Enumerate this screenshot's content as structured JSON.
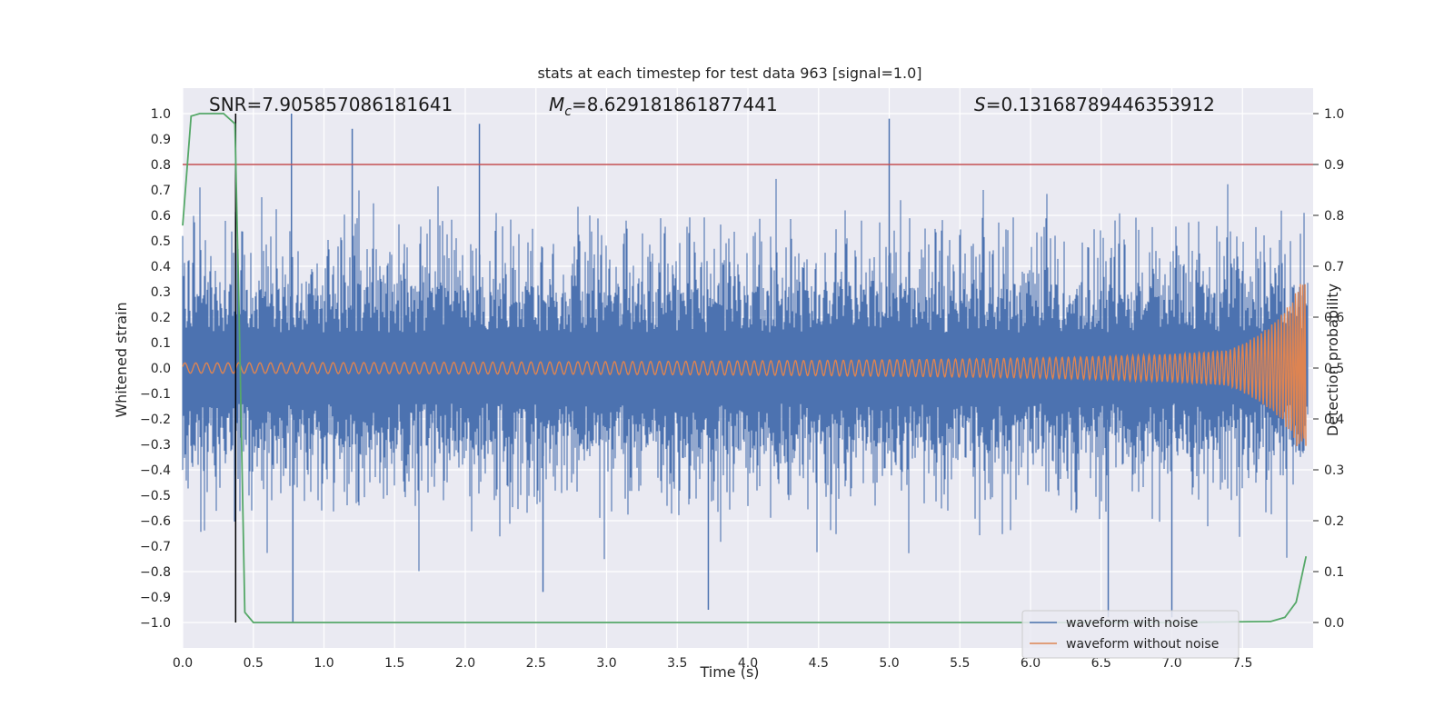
{
  "colors": {
    "plot_bg": "#eaeaf2",
    "grid": "#ffffff",
    "noise": "#4c72b0",
    "clean": "#dd8452",
    "prob": "#55a868",
    "threshold": "#c44e52",
    "marker": "#000000"
  },
  "chart_data": {
    "type": "line",
    "title": "stats at each timestep for test data 963 [signal=1.0]",
    "xlabel": "Time (s)",
    "ylabel_left": "Whitened strain",
    "ylabel_right": "Detection probability",
    "xlim": [
      0.0,
      8.0
    ],
    "ylim_left": [
      -1.1,
      1.1
    ],
    "ylim_right": [
      -0.05,
      1.05
    ],
    "x_ticks": [
      "0.0",
      "0.5",
      "1.0",
      "1.5",
      "2.0",
      "2.5",
      "3.0",
      "3.5",
      "4.0",
      "4.5",
      "5.0",
      "5.5",
      "6.0",
      "6.5",
      "7.0",
      "7.5"
    ],
    "y_ticks_left": [
      "1.0",
      "0.9",
      "0.8",
      "0.7",
      "0.6",
      "0.5",
      "0.4",
      "0.3",
      "0.2",
      "0.1",
      "0.0",
      "−0.1",
      "−0.2",
      "−0.3",
      "−0.4",
      "−0.5",
      "−0.6",
      "−0.7",
      "−0.8",
      "−0.9",
      "−1.0"
    ],
    "y_ticks_right": [
      "1.0",
      "0.9",
      "0.8",
      "0.7",
      "0.6",
      "0.5",
      "0.4",
      "0.3",
      "0.2",
      "0.1",
      "0.0"
    ],
    "stats": {
      "snr": "SNR=7.905857086181641",
      "mc_symbol": "M",
      "mc_sub": "c",
      "mc_value": "=8.629181861877441",
      "s_symbol": "S",
      "s_value": "=0.13168789446353912"
    },
    "threshold": 0.9,
    "marker_time": 0.375,
    "series": [
      {
        "name": "waveform with noise",
        "kind": "noise",
        "envelope": 0.6,
        "peak": 1.0
      },
      {
        "name": "waveform without noise",
        "kind": "chirp",
        "amplitude_start": 0.02,
        "amplitude_end": 0.33,
        "t_end": 7.95
      },
      {
        "name": "detection probability",
        "kind": "probability",
        "points": [
          [
            0.0,
            0.78
          ],
          [
            0.06,
            0.995
          ],
          [
            0.12,
            1.0
          ],
          [
            0.29,
            1.0
          ],
          [
            0.37,
            0.98
          ],
          [
            0.4,
            0.6
          ],
          [
            0.44,
            0.02
          ],
          [
            0.5,
            0.0
          ],
          [
            1.0,
            0.0
          ],
          [
            2.0,
            0.0
          ],
          [
            3.0,
            0.0
          ],
          [
            4.0,
            0.0
          ],
          [
            5.0,
            0.0
          ],
          [
            6.0,
            0.0
          ],
          [
            7.0,
            0.0
          ],
          [
            7.7,
            0.002
          ],
          [
            7.8,
            0.01
          ],
          [
            7.88,
            0.04
          ],
          [
            7.95,
            0.13
          ]
        ]
      }
    ],
    "legend": [
      {
        "label": "waveform with noise",
        "color": "#4c72b0"
      },
      {
        "label": "waveform without noise",
        "color": "#dd8452"
      }
    ]
  }
}
